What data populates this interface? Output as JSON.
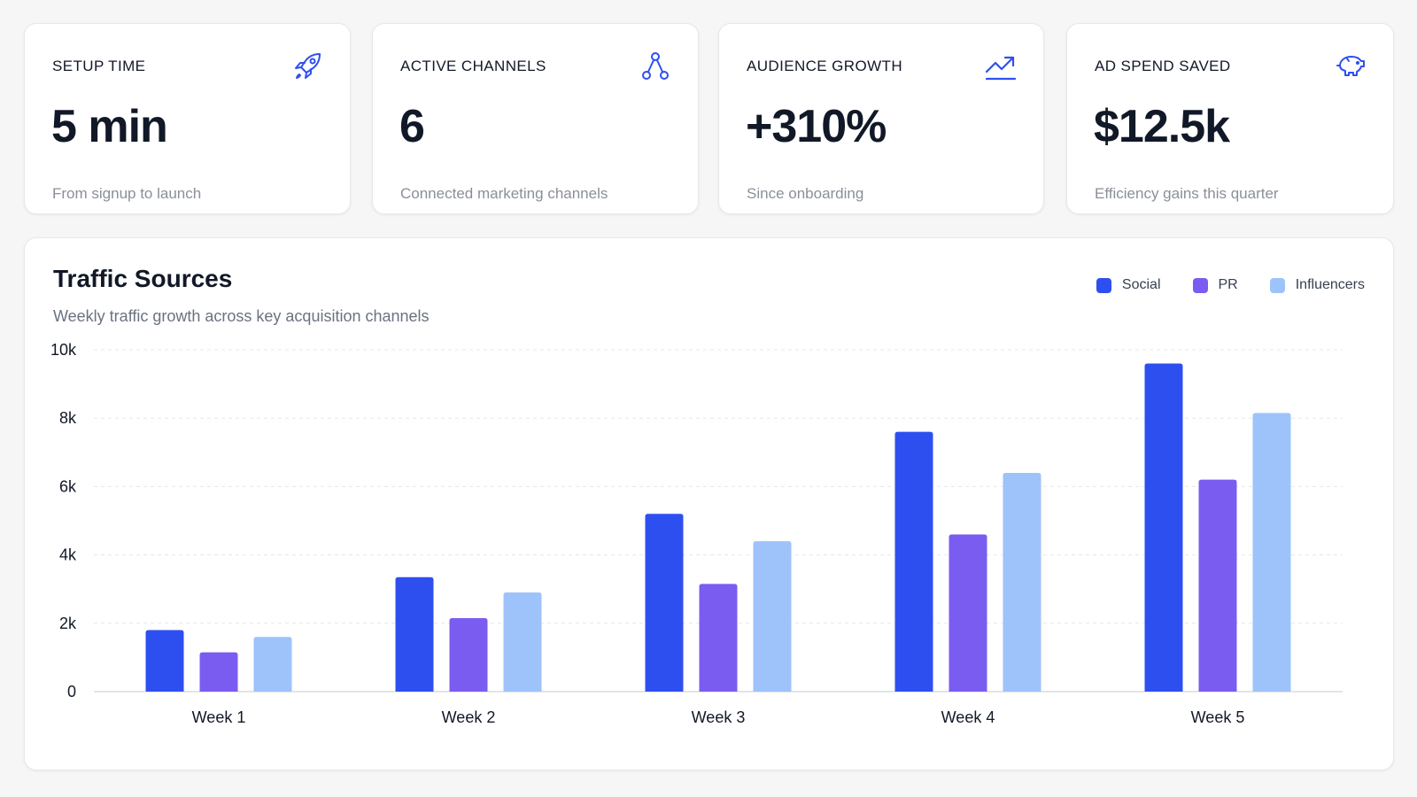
{
  "stats": [
    {
      "label": "SETUP TIME",
      "value": "5 min",
      "sub": "From signup to launch",
      "icon": "rocket-icon"
    },
    {
      "label": "ACTIVE CHANNELS",
      "value": "6",
      "sub": "Connected marketing channels",
      "icon": "share-nodes-icon"
    },
    {
      "label": "AUDIENCE GROWTH",
      "value": "+310%",
      "sub": "Since onboarding",
      "icon": "trending-up-icon"
    },
    {
      "label": "AD SPEND SAVED",
      "value": "$12.5k",
      "sub": "Efficiency gains this quarter",
      "icon": "piggy-bank-icon"
    }
  ],
  "colors": {
    "accent": "#2e4ff0",
    "social": "#2e4ff0",
    "pr": "#7b5cf0",
    "influencers": "#9dc3fa",
    "grid": "#e5e7eb",
    "axis": "#d1d5db"
  },
  "chart": {
    "title": "Traffic Sources",
    "subtitle": "Weekly traffic growth across key acquisition channels"
  },
  "legend": [
    {
      "label": "Social",
      "color": "#2e4ff0"
    },
    {
      "label": "PR",
      "color": "#7b5cf0"
    },
    {
      "label": "Influencers",
      "color": "#9dc3fa"
    }
  ],
  "chart_data": {
    "type": "bar",
    "title": "Traffic Sources",
    "subtitle": "Weekly traffic growth across key acquisition channels",
    "categories": [
      "Week 1",
      "Week 2",
      "Week 3",
      "Week 4",
      "Week 5"
    ],
    "series": [
      {
        "name": "Social",
        "values": [
          1800,
          3350,
          5200,
          7600,
          9600
        ]
      },
      {
        "name": "PR",
        "values": [
          1150,
          2150,
          3150,
          4600,
          6200
        ]
      },
      {
        "name": "Influencers",
        "values": [
          1600,
          2900,
          4400,
          6400,
          8150
        ]
      }
    ],
    "yticks": [
      "0",
      "2k",
      "4k",
      "6k",
      "8k",
      "10k"
    ],
    "ylim": [
      0,
      10000
    ],
    "grid": true,
    "legend_position": "top-right"
  }
}
